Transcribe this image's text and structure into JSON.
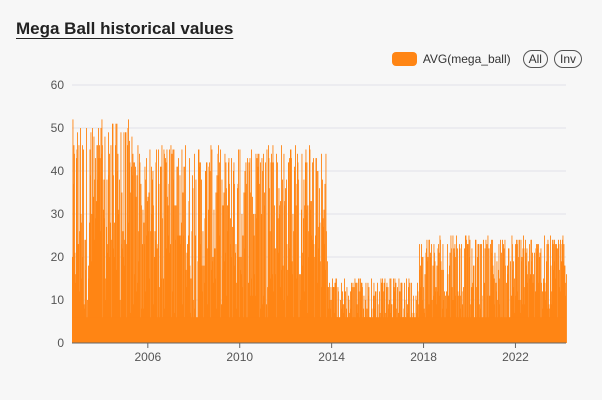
{
  "title": "Mega Ball historical values",
  "legend": {
    "label": "AVG(mega_ball)",
    "all_button": "All",
    "inv_button": "Inv"
  },
  "colors": {
    "series": "#ff8514",
    "grid": "#e2e2ea",
    "axis": "#666666"
  },
  "chart_data": {
    "type": "bar",
    "title": "Mega Ball historical values",
    "xlabel": "",
    "ylabel": "",
    "x_range": [
      2002.7,
      2024.2
    ],
    "ylim": [
      0,
      60
    ],
    "y_ticks": [
      0,
      10,
      20,
      30,
      40,
      50,
      60
    ],
    "x_ticks": [
      2006,
      2010,
      2014,
      2018,
      2022
    ],
    "grid": true,
    "legend_position": "top-right",
    "series": [
      {
        "name": "AVG(mega_ball)",
        "segments": [
          {
            "from": 2002.7,
            "to": 2005.3,
            "min": 1,
            "max": 52
          },
          {
            "from": 2005.3,
            "to": 2013.8,
            "min": 1,
            "max": 46
          },
          {
            "from": 2013.8,
            "to": 2017.8,
            "min": 1,
            "max": 15
          },
          {
            "from": 2017.8,
            "to": 2024.2,
            "min": 1,
            "max": 25
          }
        ]
      }
    ]
  }
}
